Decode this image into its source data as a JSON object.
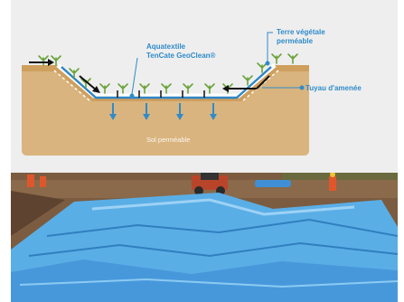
{
  "labels": {
    "geotextile_line1": "Aquatextile",
    "geotextile_line2": "TenCate GeoClean®",
    "topsoil_line1": "Terre végétale",
    "topsoil_line2": "perméable",
    "pipe": "Tuyau d'amenée",
    "subsoil": "Sol perméable"
  },
  "colors": {
    "soil": "#d9b47e",
    "bank": "#cf9f5e",
    "textile": "#2f86c5",
    "liner_light": "#5aaee6",
    "liner_dark": "#2f7fc0",
    "label_blue": "#2f8bc9",
    "plant_green": "#6aa33a",
    "arrow_black": "#111111"
  },
  "photo": {
    "subject": "blue-geomembrane-lined-pond-under-construction"
  }
}
